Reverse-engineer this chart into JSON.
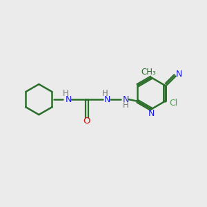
{
  "bg_color": "#ebebeb",
  "bond_color": "#2a6e2a",
  "n_color": "#1a1aee",
  "o_color": "#dd1111",
  "cl_color": "#44aa44",
  "h_color": "#777777",
  "bond_width": 1.8,
  "figsize": [
    3.0,
    3.0
  ],
  "dpi": 100,
  "xlim": [
    0,
    10
  ],
  "ylim": [
    0,
    10
  ]
}
